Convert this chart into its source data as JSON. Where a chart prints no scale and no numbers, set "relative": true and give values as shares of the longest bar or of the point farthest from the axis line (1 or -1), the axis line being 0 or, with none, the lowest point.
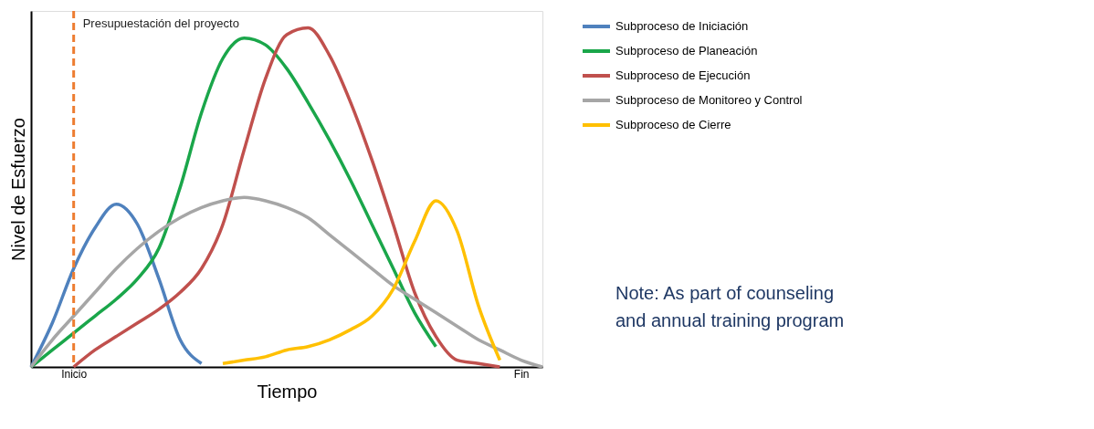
{
  "chart_data": {
    "type": "line",
    "relative": true,
    "xlabel": "Tiempo",
    "ylabel": "Nivel de Esfuerzo",
    "categories": [
      null,
      null,
      "Inicio",
      null,
      null,
      null,
      null,
      null,
      null,
      null,
      null,
      null,
      null,
      null,
      null,
      null,
      null,
      null,
      null,
      null,
      null,
      null,
      null,
      "Fin",
      null
    ],
    "legend": "right",
    "line_style": "solid",
    "ref_lines": [
      {
        "axis": "x",
        "value": "Inicio",
        "label": "Presupuestación del proyecto",
        "color": "#ed7d31",
        "line_style": "dashed"
      }
    ],
    "annotations": [
      "Note: As part of counseling and annual  training program"
    ],
    "series": [
      {
        "name": "Subproceso de Iniciación",
        "color": "#4f81bd",
        "values": [
          0,
          0.13,
          0.29,
          0.41,
          0.48,
          0.42,
          0.26,
          0.08,
          0.01,
          null,
          null,
          null,
          null,
          null,
          null,
          null,
          null,
          null,
          null,
          null,
          null,
          null,
          null,
          null,
          null
        ]
      },
      {
        "name": "Subproceso de Planeación",
        "color": "#1aa64a",
        "values": [
          0,
          0.05,
          0.1,
          0.15,
          0.2,
          0.26,
          0.35,
          0.53,
          0.75,
          0.91,
          0.97,
          0.95,
          0.88,
          0.78,
          0.67,
          0.55,
          0.42,
          0.29,
          0.16,
          0.06,
          null,
          null,
          null,
          null,
          null
        ]
      },
      {
        "name": "Subproceso de Ejecución",
        "color": "#c0504d",
        "values": [
          null,
          null,
          0,
          0.05,
          0.09,
          0.13,
          0.17,
          0.22,
          0.29,
          0.42,
          0.64,
          0.85,
          0.98,
          1,
          0.92,
          0.78,
          0.61,
          0.42,
          0.22,
          0.09,
          0.02,
          0.01,
          0,
          null,
          null
        ]
      },
      {
        "name": "Subproceso de Monitoreo y Control",
        "color": "#a6a6a6",
        "values": [
          0,
          0.08,
          0.15,
          0.22,
          0.29,
          0.35,
          0.4,
          0.44,
          0.47,
          0.49,
          0.5,
          0.49,
          0.47,
          0.44,
          0.39,
          0.34,
          0.29,
          0.24,
          0.2,
          0.16,
          0.12,
          0.08,
          0.05,
          0.02,
          0
        ]
      },
      {
        "name": "Subproceso de Cierre",
        "color": "#ffc000",
        "values": [
          null,
          null,
          null,
          null,
          null,
          null,
          null,
          null,
          null,
          0.01,
          0.02,
          0.03,
          0.05,
          0.06,
          0.08,
          0.11,
          0.15,
          0.23,
          0.37,
          0.49,
          0.4,
          0.18,
          0.02,
          null,
          null
        ]
      }
    ]
  }
}
